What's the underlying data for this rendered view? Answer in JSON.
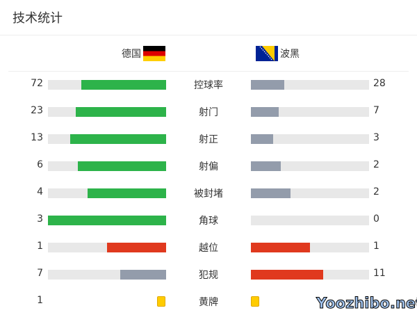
{
  "title": "技术统计",
  "home": {
    "name": "德国",
    "flag": "germany-flag-icon"
  },
  "away": {
    "name": "波黑",
    "flag": "bosnia-flag-icon"
  },
  "colors": {
    "green": "#2db34a",
    "gray": "#939cab",
    "red": "#e0391e",
    "track": "#e8e8e8",
    "card": "#ffcc00"
  },
  "stats": [
    {
      "label": "控球率",
      "home": "72",
      "away": "28",
      "home_color": "#2db34a",
      "away_color": "#939cab"
    },
    {
      "label": "射门",
      "home": "23",
      "away": "7",
      "home_color": "#2db34a",
      "away_color": "#939cab"
    },
    {
      "label": "射正",
      "home": "13",
      "away": "3",
      "home_color": "#2db34a",
      "away_color": "#939cab"
    },
    {
      "label": "射偏",
      "home": "6",
      "away": "2",
      "home_color": "#2db34a",
      "away_color": "#939cab"
    },
    {
      "label": "被封堵",
      "home": "4",
      "away": "2",
      "home_color": "#2db34a",
      "away_color": "#939cab"
    },
    {
      "label": "角球",
      "home": "3",
      "away": "0",
      "home_color": "#2db34a",
      "away_color": "#939cab"
    },
    {
      "label": "越位",
      "home": "1",
      "away": "1",
      "home_color": "#e0391e",
      "away_color": "#e0391e"
    },
    {
      "label": "犯规",
      "home": "7",
      "away": "11",
      "home_color": "#939cab",
      "away_color": "#e0391e"
    }
  ],
  "yellow": {
    "label": "黄牌",
    "home": "1"
  },
  "watermark": "Yoozhibo.net"
}
